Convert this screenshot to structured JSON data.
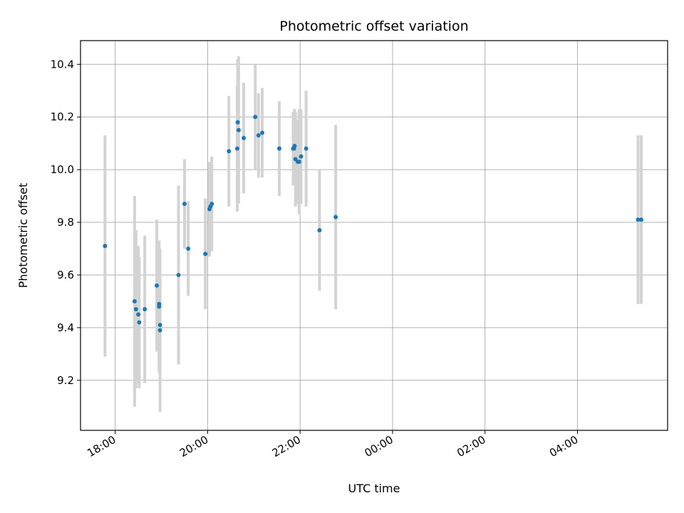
{
  "chart_data": {
    "type": "scatter",
    "title": "Photometric offset variation",
    "xlabel": "UTC time",
    "ylabel": "Photometric offset",
    "grid": true,
    "x_unit": "hours (UTC, continuing past midnight)",
    "xlim": [
      17.25,
      29.95
    ],
    "ylim": [
      9.01,
      10.49
    ],
    "x_ticks": [
      {
        "value": 18,
        "label": "18:00"
      },
      {
        "value": 20,
        "label": "20:00"
      },
      {
        "value": 22,
        "label": "22:00"
      },
      {
        "value": 24,
        "label": "00:00"
      },
      {
        "value": 26,
        "label": "02:00"
      },
      {
        "value": 28,
        "label": "04:00"
      }
    ],
    "y_ticks": [
      {
        "value": 9.2,
        "label": "9.2"
      },
      {
        "value": 9.4,
        "label": "9.4"
      },
      {
        "value": 9.6,
        "label": "9.6"
      },
      {
        "value": 9.8,
        "label": "9.8"
      },
      {
        "value": 10.0,
        "label": "10.0"
      },
      {
        "value": 10.2,
        "label": "10.2"
      },
      {
        "value": 10.4,
        "label": "10.4"
      }
    ],
    "colors": {
      "point": "#1f77b4",
      "errorbar": "#d3d3d3",
      "grid": "#b0b0b0",
      "axis": "#000000"
    },
    "points": [
      {
        "x": 17.78,
        "y": 9.71,
        "err": 0.42
      },
      {
        "x": 18.42,
        "y": 9.5,
        "err": 0.4
      },
      {
        "x": 18.45,
        "y": 9.47,
        "err": 0.3
      },
      {
        "x": 18.5,
        "y": 9.45,
        "err": 0.26
      },
      {
        "x": 18.52,
        "y": 9.42,
        "err": 0.25
      },
      {
        "x": 18.64,
        "y": 9.47,
        "err": 0.28
      },
      {
        "x": 18.9,
        "y": 9.56,
        "err": 0.25
      },
      {
        "x": 18.95,
        "y": 9.49,
        "err": 0.24
      },
      {
        "x": 18.95,
        "y": 9.48,
        "err": 0.25
      },
      {
        "x": 18.97,
        "y": 9.41,
        "err": 0.18
      },
      {
        "x": 18.97,
        "y": 9.39,
        "err": 0.31
      },
      {
        "x": 19.37,
        "y": 9.6,
        "err": 0.34
      },
      {
        "x": 19.5,
        "y": 9.87,
        "err": 0.17
      },
      {
        "x": 19.58,
        "y": 9.7,
        "err": 0.18
      },
      {
        "x": 19.95,
        "y": 9.68,
        "err": 0.21
      },
      {
        "x": 20.04,
        "y": 9.85,
        "err": 0.18
      },
      {
        "x": 20.06,
        "y": 9.86,
        "err": 0.17
      },
      {
        "x": 20.09,
        "y": 9.87,
        "err": 0.18
      },
      {
        "x": 20.46,
        "y": 10.07,
        "err": 0.21
      },
      {
        "x": 20.64,
        "y": 10.08,
        "err": 0.24
      },
      {
        "x": 20.65,
        "y": 10.18,
        "err": 0.24
      },
      {
        "x": 20.67,
        "y": 10.15,
        "err": 0.28
      },
      {
        "x": 20.78,
        "y": 10.12,
        "err": 0.21
      },
      {
        "x": 21.03,
        "y": 10.2,
        "err": 0.2
      },
      {
        "x": 21.1,
        "y": 10.13,
        "err": 0.16
      },
      {
        "x": 21.18,
        "y": 10.14,
        "err": 0.17
      },
      {
        "x": 21.55,
        "y": 10.08,
        "err": 0.18
      },
      {
        "x": 21.85,
        "y": 10.08,
        "err": 0.14
      },
      {
        "x": 21.87,
        "y": 10.08,
        "err": 0.13
      },
      {
        "x": 21.88,
        "y": 10.09,
        "err": 0.14
      },
      {
        "x": 21.9,
        "y": 10.04,
        "err": 0.18
      },
      {
        "x": 21.95,
        "y": 10.03,
        "err": 0.16
      },
      {
        "x": 21.98,
        "y": 10.03,
        "err": 0.2
      },
      {
        "x": 22.02,
        "y": 10.05,
        "err": 0.18
      },
      {
        "x": 22.13,
        "y": 10.08,
        "err": 0.22
      },
      {
        "x": 22.42,
        "y": 9.77,
        "err": 0.23
      },
      {
        "x": 22.77,
        "y": 9.82,
        "err": 0.35
      },
      {
        "x": 29.31,
        "y": 9.81,
        "err": 0.32
      },
      {
        "x": 29.38,
        "y": 9.81,
        "err": 0.32
      }
    ]
  }
}
